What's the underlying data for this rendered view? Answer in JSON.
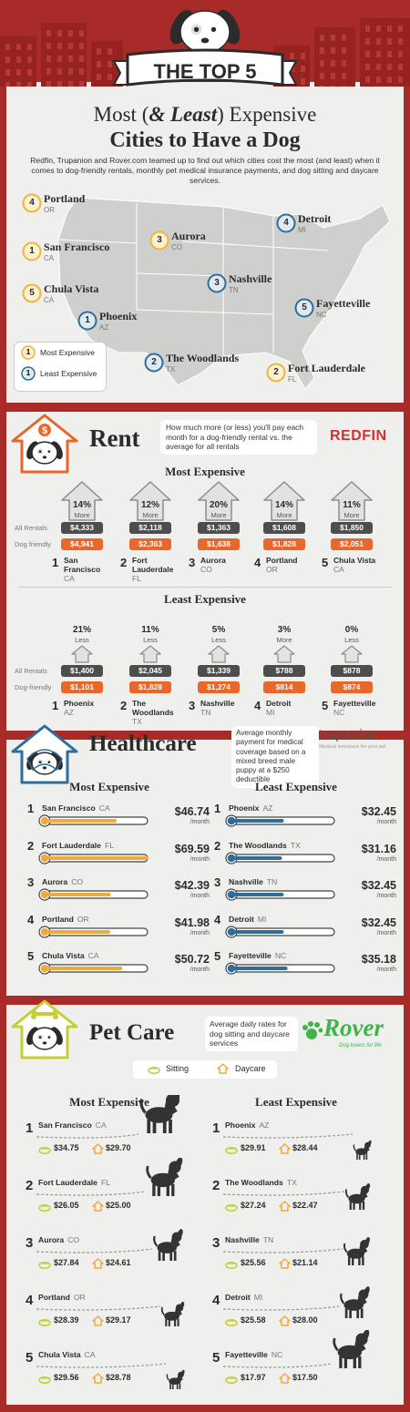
{
  "header": {
    "banner": "THE TOP 5",
    "title": {
      "before": "Most (",
      "italic": "& Least",
      "after": ") Expensive",
      "line2": "Cities to Have a Dog"
    },
    "description": "Redfin, Trupanion and Rover.com teamed up to find out which cities cost the most (and least) when it comes to dog-friendly rentals, monthly pet medical insurance payments, and dog sitting and daycare services."
  },
  "map": {
    "cities": [
      {
        "rank": 4,
        "name": "Portland",
        "state": "OR",
        "group": "most"
      },
      {
        "rank": 1,
        "name": "San Francisco",
        "state": "CA",
        "group": "most"
      },
      {
        "rank": 5,
        "name": "Chula Vista",
        "state": "CA",
        "group": "most"
      },
      {
        "rank": 1,
        "name": "Phoenix",
        "state": "AZ",
        "group": "least"
      },
      {
        "rank": 3,
        "name": "Aurora",
        "state": "CO",
        "group": "most"
      },
      {
        "rank": 4,
        "name": "Detroit",
        "state": "MI",
        "group": "least"
      },
      {
        "rank": 3,
        "name": "Nashville",
        "state": "TN",
        "group": "least"
      },
      {
        "rank": 5,
        "name": "Fayetteville",
        "state": "NC",
        "group": "least"
      },
      {
        "rank": 2,
        "name": "The Woodlands",
        "state": "TX",
        "group": "least"
      },
      {
        "rank": 2,
        "name": "Fort Lauderdale",
        "state": "FL",
        "group": "most"
      }
    ],
    "legend": [
      {
        "rank": 1,
        "label": "Most Expensive",
        "group": "most"
      },
      {
        "rank": 1,
        "label": "Least Expensive",
        "group": "least"
      }
    ]
  },
  "rent": {
    "title": "Rent",
    "description": "How much more (or less) you'll pay each month for a dog-friendly rental vs. the average for all rentals",
    "logo": "REDFIN",
    "most": {
      "heading": "Most Expensive",
      "row_labels": [
        "All Rentals",
        "Dog friendly"
      ],
      "items": [
        {
          "rank": 1,
          "city": "San Francisco",
          "state": "CA",
          "pct": "14%",
          "dir": "More",
          "all": "$4,333",
          "dog": "$4,941"
        },
        {
          "rank": 2,
          "city": "Fort Lauderdale",
          "state": "FL",
          "pct": "12%",
          "dir": "More",
          "all": "$2,118",
          "dog": "$2,363"
        },
        {
          "rank": 3,
          "city": "Aurora",
          "state": "CO",
          "pct": "20%",
          "dir": "More",
          "all": "$1,363",
          "dog": "$1,638"
        },
        {
          "rank": 4,
          "city": "Portland",
          "state": "OR",
          "pct": "14%",
          "dir": "More",
          "all": "$1,608",
          "dog": "$1,828"
        },
        {
          "rank": 5,
          "city": "Chula Vista",
          "state": "CA",
          "pct": "11%",
          "dir": "More",
          "all": "$1,850",
          "dog": "$2,051"
        }
      ]
    },
    "least": {
      "heading": "Least Expensive",
      "row_labels": [
        "All Rentals",
        "Dog-friendly"
      ],
      "items": [
        {
          "rank": 1,
          "city": "Phoenix",
          "state": "AZ",
          "pct": "21%",
          "dir": "Less",
          "all": "$1,400",
          "dog": "$1,101"
        },
        {
          "rank": 2,
          "city": "The Woodlands",
          "state": "TX",
          "pct": "11%",
          "dir": "Less",
          "all": "$2,045",
          "dog": "$1,828"
        },
        {
          "rank": 3,
          "city": "Nashville",
          "state": "TN",
          "pct": "5%",
          "dir": "Less",
          "all": "$1,339",
          "dog": "$1,274"
        },
        {
          "rank": 4,
          "city": "Detroit",
          "state": "MI",
          "pct": "3%",
          "dir": "More",
          "all": "$788",
          "dog": "$814"
        },
        {
          "rank": 5,
          "city": "Fayetteville",
          "state": "NC",
          "pct": "0%",
          "dir": "Less",
          "all": "$878",
          "dog": "$874"
        }
      ]
    }
  },
  "healthcare": {
    "title": "Healthcare",
    "description": "Average monthly payment for medical coverage based on a mixed breed male puppy at a $250 deductible",
    "logo": "trupanion",
    "logo_tagline": "Medical insurance for your pet",
    "unit": "/month",
    "columns": [
      {
        "heading": "Most Expensive",
        "group": "most",
        "items": [
          {
            "rank": 1,
            "city": "San Francisco",
            "state": "CA",
            "price": {
              "value": 46.74,
              "label": "$46.74"
            }
          },
          {
            "rank": 2,
            "city": "Fort Lauderdale",
            "state": "FL",
            "price": {
              "value": 69.59,
              "label": "$69.59"
            }
          },
          {
            "rank": 3,
            "city": "Aurora",
            "state": "CO",
            "price": {
              "value": 42.39,
              "label": "$42.39"
            }
          },
          {
            "rank": 4,
            "city": "Portland",
            "state": "OR",
            "price": {
              "value": 41.98,
              "label": "$41.98"
            }
          },
          {
            "rank": 5,
            "city": "Chula Vista",
            "state": "CA",
            "price": {
              "value": 50.72,
              "label": "$50.72"
            }
          }
        ]
      },
      {
        "heading": "Least Expensive",
        "group": "least",
        "items": [
          {
            "rank": 1,
            "city": "Phoenix",
            "state": "AZ",
            "price": {
              "value": 32.45,
              "label": "$32.45"
            }
          },
          {
            "rank": 2,
            "city": "The Woodlands",
            "state": "TX",
            "price": {
              "value": 31.16,
              "label": "$31.16"
            }
          },
          {
            "rank": 3,
            "city": "Nashville",
            "state": "TN",
            "price": {
              "value": 32.45,
              "label": "$32.45"
            }
          },
          {
            "rank": 4,
            "city": "Detroit",
            "state": "MI",
            "price": {
              "value": 32.45,
              "label": "$32.45"
            }
          },
          {
            "rank": 5,
            "city": "Fayetteville",
            "state": "NC",
            "price": {
              "value": 35.18,
              "label": "$35.18"
            }
          }
        ]
      }
    ]
  },
  "petcare": {
    "title": "Pet Care",
    "description": "Average daily rates for dog sitting and daycare services",
    "logo": "Rover",
    "logo_tagline": "Dog lovers for life",
    "legend": {
      "sitting": "Sitting",
      "daycare": "Daycare"
    },
    "columns": [
      {
        "heading": "Most Expensive",
        "items": [
          {
            "rank": 1,
            "city": "San Francisco",
            "state": "CA",
            "sitting": "$34.75",
            "daycare": "$29.70"
          },
          {
            "rank": 2,
            "city": "Fort Lauderdale",
            "state": "FL",
            "sitting": "$26.05",
            "daycare": "$25.00"
          },
          {
            "rank": 3,
            "city": "Aurora",
            "state": "CO",
            "sitting": "$27.84",
            "daycare": "$24.61"
          },
          {
            "rank": 4,
            "city": "Portland",
            "state": "OR",
            "sitting": "$28.39",
            "daycare": "$29.17"
          },
          {
            "rank": 5,
            "city": "Chula Vista",
            "state": "CA",
            "sitting": "$29.56",
            "daycare": "$28.78"
          }
        ]
      },
      {
        "heading": "Least Expensive",
        "items": [
          {
            "rank": 1,
            "city": "Phoenix",
            "state": "AZ",
            "sitting": "$29.91",
            "daycare": "$28.44"
          },
          {
            "rank": 2,
            "city": "The Woodlands",
            "state": "TX",
            "sitting": "$27.24",
            "daycare": "$22.47"
          },
          {
            "rank": 3,
            "city": "Nashville",
            "state": "TN",
            "sitting": "$25.56",
            "daycare": "$21.14"
          },
          {
            "rank": 4,
            "city": "Detroit",
            "state": "MI",
            "sitting": "$25.58",
            "daycare": "$28.00"
          },
          {
            "rank": 5,
            "city": "Fayetteville",
            "state": "NC",
            "sitting": "$17.97",
            "daycare": "$17.50"
          }
        ]
      }
    ]
  }
}
